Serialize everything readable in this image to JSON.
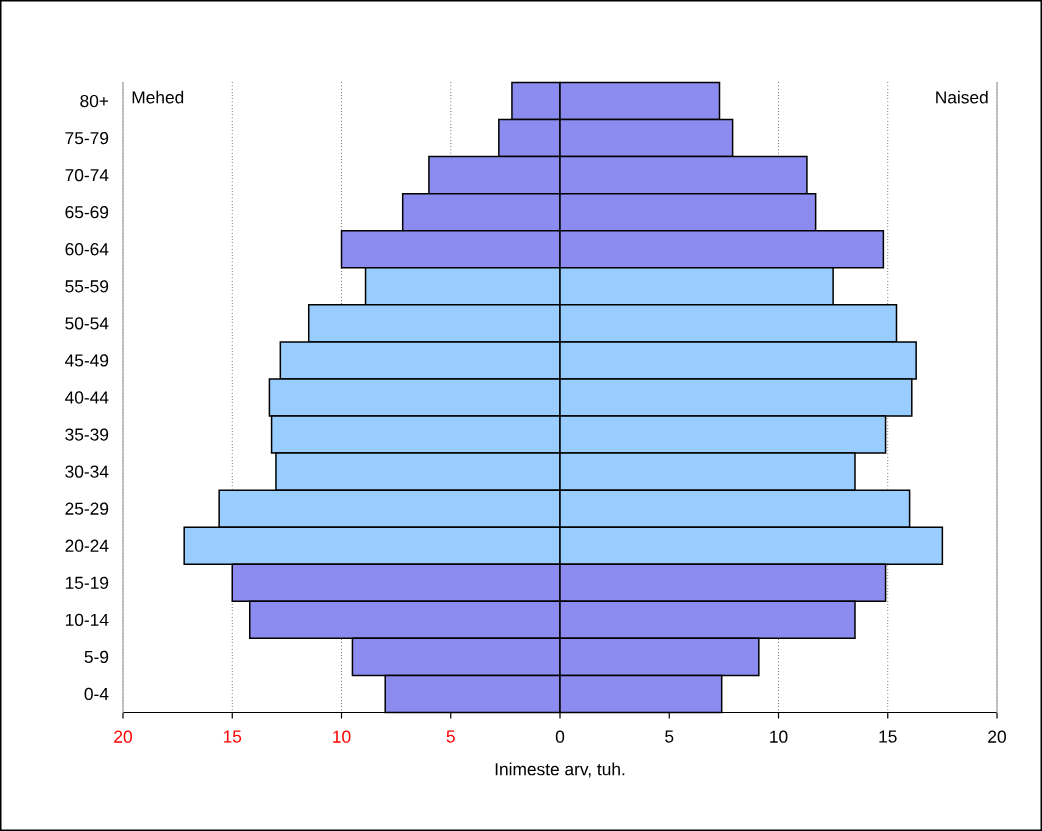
{
  "chart_data": {
    "type": "bar",
    "orientation": "horizontal",
    "stacked": true,
    "categories": [
      "80+",
      "75-79",
      "70-74",
      "65-69",
      "60-64",
      "55-59",
      "50-54",
      "45-49",
      "40-44",
      "35-39",
      "30-34",
      "25-29",
      "20-24",
      "15-19",
      "10-14",
      "5-9",
      "0-4"
    ],
    "series": [
      {
        "values": [
          -2.2,
          -2.8,
          -6.0,
          -7.2,
          -10.0,
          -8.9,
          -11.5,
          -12.8,
          -13.3,
          -13.2,
          -13.0,
          -15.6,
          -17.2,
          -15.0,
          -14.2,
          -9.5,
          -8.0
        ],
        "colors": [
          "#8c8cf0",
          "#8c8cf0",
          "#8c8cf0",
          "#8c8cf0",
          "#8c8cf0",
          "#99ccff",
          "#99ccff",
          "#99ccff",
          "#99ccff",
          "#99ccff",
          "#99ccff",
          "#99ccff",
          "#99ccff",
          "#8c8cf0",
          "#8c8cf0",
          "#8c8cf0",
          "#8c8cf0"
        ]
      },
      {
        "values": [
          7.3,
          7.9,
          11.3,
          11.7,
          14.8,
          12.5,
          15.4,
          16.3,
          16.1,
          14.9,
          13.5,
          16.0,
          17.5,
          14.9,
          13.5,
          9.1,
          7.4
        ],
        "colors": [
          "#8c8cf0",
          "#8c8cf0",
          "#8c8cf0",
          "#8c8cf0",
          "#8c8cf0",
          "#99ccff",
          "#99ccff",
          "#99ccff",
          "#99ccff",
          "#99ccff",
          "#99ccff",
          "#99ccff",
          "#99ccff",
          "#8c8cf0",
          "#8c8cf0",
          "#8c8cf0",
          "#8c8cf0"
        ]
      }
    ],
    "xlim": [
      -20,
      20
    ],
    "xticks": [
      {
        "value": -20,
        "label": "20"
      },
      {
        "value": -15,
        "label": "15"
      },
      {
        "value": -10,
        "label": "10"
      },
      {
        "value": -5,
        "label": "5"
      },
      0,
      5,
      10,
      15,
      20
    ],
    "xlabel": "Inimeste arv, tuh.",
    "annotations": [
      "Mehed",
      "Naised"
    ],
    "grid": "x"
  }
}
